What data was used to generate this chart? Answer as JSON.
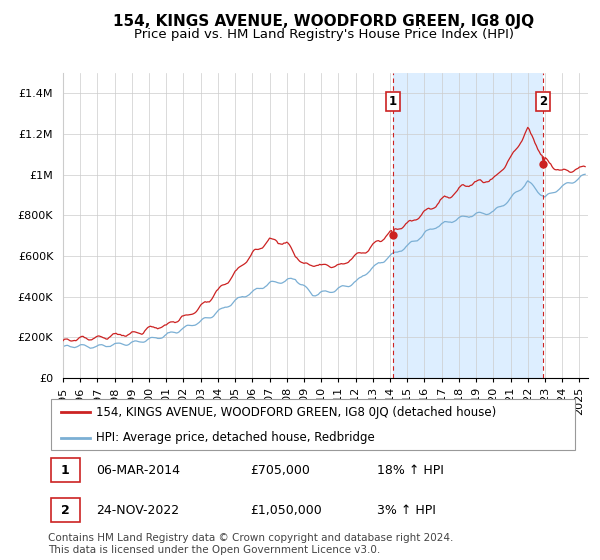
{
  "title": "154, KINGS AVENUE, WOODFORD GREEN, IG8 0JQ",
  "subtitle": "Price paid vs. HM Land Registry's House Price Index (HPI)",
  "ylabel_ticks": [
    "£0",
    "£200K",
    "£400K",
    "£600K",
    "£800K",
    "£1M",
    "£1.2M",
    "£1.4M"
  ],
  "ytick_values": [
    0,
    200000,
    400000,
    600000,
    800000,
    1000000,
    1200000,
    1400000
  ],
  "ylim": [
    0,
    1500000
  ],
  "xlim_start": 1995.0,
  "xlim_end": 2025.5,
  "sale1_date": 2014.18,
  "sale1_price": 705000,
  "sale2_date": 2022.9,
  "sale2_price": 1050000,
  "red_line_color": "#cc2222",
  "blue_line_color": "#7bafd4",
  "fill_color": "#ddeeff",
  "marker_color": "#cc2222",
  "vline_color": "#cc2222",
  "grid_color": "#cccccc",
  "background_color": "#ffffff",
  "legend_label_red": "154, KINGS AVENUE, WOODFORD GREEN, IG8 0JQ (detached house)",
  "legend_label_blue": "HPI: Average price, detached house, Redbridge",
  "table_row1": [
    "1",
    "06-MAR-2014",
    "£705,000",
    "18% ↑ HPI"
  ],
  "table_row2": [
    "2",
    "24-NOV-2022",
    "£1,050,000",
    "3% ↑ HPI"
  ],
  "footer": "Contains HM Land Registry data © Crown copyright and database right 2024.\nThis data is licensed under the Open Government Licence v3.0.",
  "title_fontsize": 11,
  "subtitle_fontsize": 9.5,
  "tick_fontsize": 8,
  "legend_fontsize": 8.5,
  "table_fontsize": 9,
  "footer_fontsize": 7.5
}
